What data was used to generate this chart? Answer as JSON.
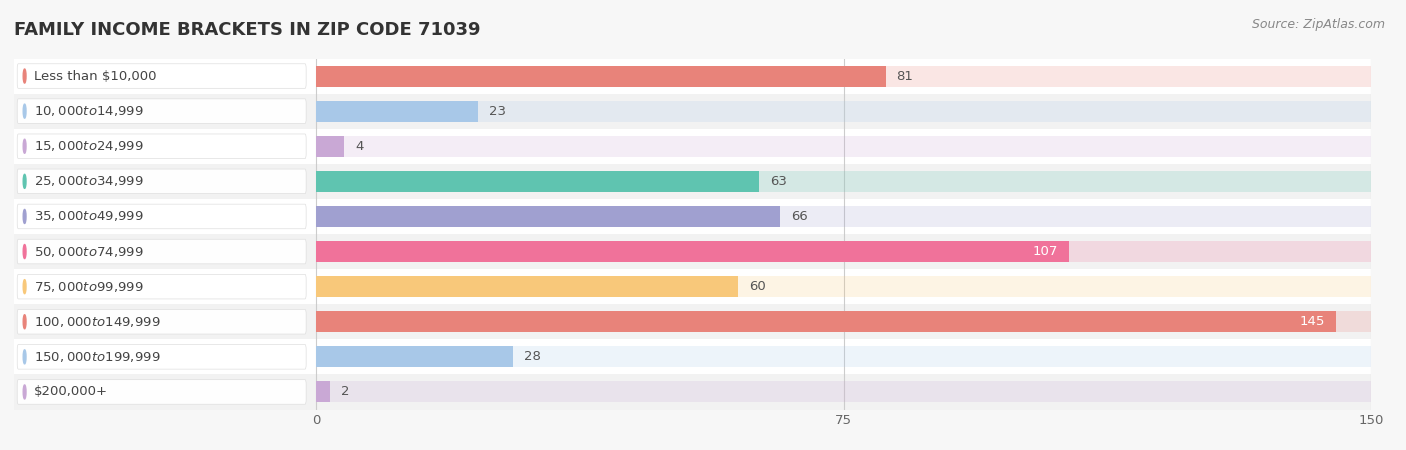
{
  "title": "FAMILY INCOME BRACKETS IN ZIP CODE 71039",
  "source": "Source: ZipAtlas.com",
  "categories": [
    "Less than $10,000",
    "$10,000 to $14,999",
    "$15,000 to $24,999",
    "$25,000 to $34,999",
    "$35,000 to $49,999",
    "$50,000 to $74,999",
    "$75,000 to $99,999",
    "$100,000 to $149,999",
    "$150,000 to $199,999",
    "$200,000+"
  ],
  "values": [
    81,
    23,
    4,
    63,
    66,
    107,
    60,
    145,
    28,
    2
  ],
  "bar_colors": [
    "#E8837A",
    "#A8C8E8",
    "#C9A8D5",
    "#5FC4B0",
    "#A0A0D0",
    "#F0729A",
    "#F8C87A",
    "#E8837A",
    "#A8C8E8",
    "#C9A8D5"
  ],
  "bg_color": "#f7f7f7",
  "xlim_data": [
    -43,
    150
  ],
  "xlim_display": [
    0,
    150
  ],
  "xticks": [
    0,
    75,
    150
  ],
  "title_fontsize": 13,
  "label_fontsize": 9.5,
  "value_fontsize": 9.5,
  "row_colors": [
    "#ffffff",
    "#f2f2f2"
  ]
}
